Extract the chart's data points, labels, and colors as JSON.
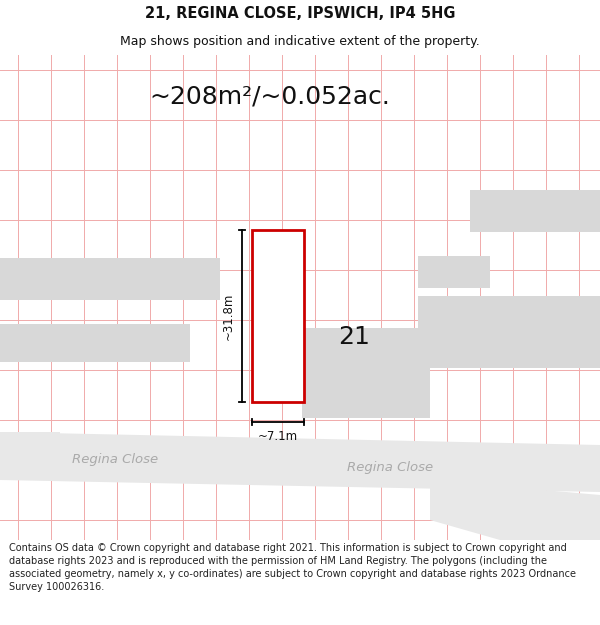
{
  "title_line1": "21, REGINA CLOSE, IPSWICH, IP4 5HG",
  "title_line2": "Map shows position and indicative extent of the property.",
  "area_text": "~208m²/~0.052ac.",
  "width_label": "~7.1m",
  "height_label": "~31.8m",
  "number_label": "21",
  "road_label_left": "Regina Close",
  "road_label_right": "Close",
  "footer_text": "Contains OS data © Crown copyright and database right 2021. This information is subject to Crown copyright and database rights 2023 and is reproduced with the permission of HM Land Registry. The polygons (including the associated geometry, namely x, y co-ordinates) are subject to Crown copyright and database rights 2023 Ordnance Survey 100026316.",
  "bg_color": "#ffffff",
  "map_bg": "#ffffff",
  "plot_outline_color": "#cc0000",
  "grid_line_color": "#f0aaaa",
  "road_fill_color": "#e8e8e8",
  "building_fill_color": "#d8d8d8",
  "dim_line_color": "#000000",
  "title_fontsize": 10.5,
  "subtitle_fontsize": 9,
  "area_fontsize": 18,
  "label_fontsize": 18,
  "road_fontsize": 9.5,
  "dim_fontsize": 8.5,
  "footer_fontsize": 7.0
}
